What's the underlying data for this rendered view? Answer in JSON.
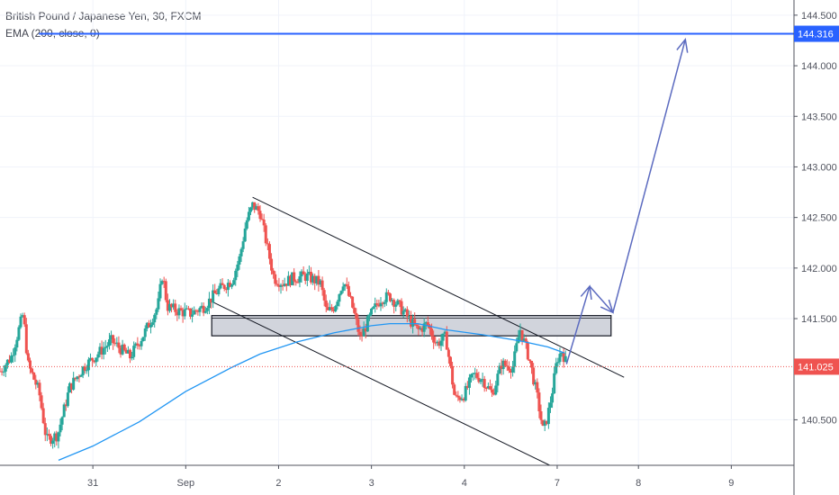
{
  "legend": {
    "symbol": "British Pound / Japanese Yen, 30, FXCM",
    "indicator": "EMA (200, close, 0)"
  },
  "colors": {
    "up": "#26a69a",
    "down": "#ef5350",
    "ema": "#2196f3",
    "target": "#2962ff",
    "current": "#ef5350",
    "arrows": "#5c6bc0",
    "channel": "#131722",
    "zone_fill": "#d1d4dc"
  },
  "chart_data": {
    "type": "candlestick",
    "x_ticks": [
      {
        "label": "31",
        "x": 1.0
      },
      {
        "label": "Sep",
        "x": 2.0
      },
      {
        "label": "2",
        "x": 3.0
      },
      {
        "label": "3",
        "x": 4.0
      },
      {
        "label": "4",
        "x": 5.0
      },
      {
        "label": "7",
        "x": 6.0
      },
      {
        "label": "8",
        "x": 6.875
      },
      {
        "label": "9",
        "x": 7.875
      }
    ],
    "x_range": [
      0.0,
      8.55
    ],
    "y_range": [
      140.05,
      144.65
    ],
    "y_ticks": [
      "144.500",
      "144.000",
      "143.500",
      "143.000",
      "142.500",
      "142.000",
      "141.500",
      "140.500"
    ],
    "price_path": [
      [
        0.0,
        140.98
      ],
      [
        0.12,
        141.12
      ],
      [
        0.25,
        141.55
      ],
      [
        0.3,
        141.05
      ],
      [
        0.42,
        140.78
      ],
      [
        0.5,
        140.3
      ],
      [
        0.62,
        140.35
      ],
      [
        0.75,
        140.82
      ],
      [
        0.9,
        141.02
      ],
      [
        1.05,
        141.15
      ],
      [
        1.2,
        141.28
      ],
      [
        1.4,
        141.12
      ],
      [
        1.55,
        141.35
      ],
      [
        1.7,
        141.62
      ],
      [
        1.75,
        141.95
      ],
      [
        1.8,
        141.62
      ],
      [
        1.9,
        141.58
      ],
      [
        2.05,
        141.55
      ],
      [
        2.2,
        141.62
      ],
      [
        2.35,
        141.78
      ],
      [
        2.5,
        141.88
      ],
      [
        2.58,
        142.1
      ],
      [
        2.65,
        142.45
      ],
      [
        2.72,
        142.62
      ],
      [
        2.8,
        142.55
      ],
      [
        2.88,
        142.2
      ],
      [
        2.95,
        141.9
      ],
      [
        3.05,
        141.85
      ],
      [
        3.15,
        141.9
      ],
      [
        3.3,
        141.92
      ],
      [
        3.45,
        141.85
      ],
      [
        3.52,
        141.55
      ],
      [
        3.6,
        141.62
      ],
      [
        3.7,
        141.88
      ],
      [
        3.8,
        141.6
      ],
      [
        3.88,
        141.3
      ],
      [
        4.0,
        141.55
      ],
      [
        4.1,
        141.7
      ],
      [
        4.2,
        141.72
      ],
      [
        4.3,
        141.62
      ],
      [
        4.4,
        141.5
      ],
      [
        4.5,
        141.38
      ],
      [
        4.6,
        141.45
      ],
      [
        4.7,
        141.25
      ],
      [
        4.8,
        141.32
      ],
      [
        4.9,
        140.7
      ],
      [
        5.0,
        140.75
      ],
      [
        5.1,
        140.95
      ],
      [
        5.2,
        140.9
      ],
      [
        5.3,
        140.75
      ],
      [
        5.4,
        141.05
      ],
      [
        5.52,
        141.02
      ],
      [
        5.6,
        141.4
      ],
      [
        5.7,
        141.1
      ],
      [
        5.78,
        140.75
      ],
      [
        5.85,
        140.38
      ],
      [
        5.9,
        140.55
      ],
      [
        5.95,
        140.8
      ],
      [
        6.0,
        141.1
      ],
      [
        6.05,
        141.18
      ],
      [
        6.09,
        141.08
      ]
    ],
    "ema_200": [
      [
        0.63,
        140.1
      ],
      [
        1.0,
        140.24
      ],
      [
        1.5,
        140.48
      ],
      [
        2.0,
        140.78
      ],
      [
        2.5,
        141.02
      ],
      [
        2.8,
        141.15
      ],
      [
        3.2,
        141.27
      ],
      [
        3.6,
        141.36
      ],
      [
        4.0,
        141.43
      ],
      [
        4.2,
        141.45
      ],
      [
        4.5,
        141.45
      ],
      [
        4.8,
        141.39
      ],
      [
        5.2,
        141.34
      ],
      [
        5.6,
        141.28
      ],
      [
        5.9,
        141.22
      ],
      [
        6.08,
        141.16
      ]
    ],
    "current_price": 141.025,
    "target_price": 144.316,
    "target_line_x": [
      0.42,
      8.55
    ],
    "channel_lines": [
      {
        "from": [
          2.72,
          142.7
        ],
        "to": [
          6.72,
          140.92
        ]
      },
      {
        "from": [
          2.3,
          141.66
        ],
        "to": [
          5.92,
          140.05
        ]
      }
    ],
    "resistance_zone": {
      "x": [
        2.28,
        6.58
      ],
      "y_low": 141.33,
      "y_high": 141.53
    },
    "projection_path": [
      [
        6.1,
        141.05
      ],
      [
        6.35,
        141.82
      ],
      [
        6.6,
        141.56
      ],
      [
        7.38,
        144.26
      ]
    ]
  }
}
